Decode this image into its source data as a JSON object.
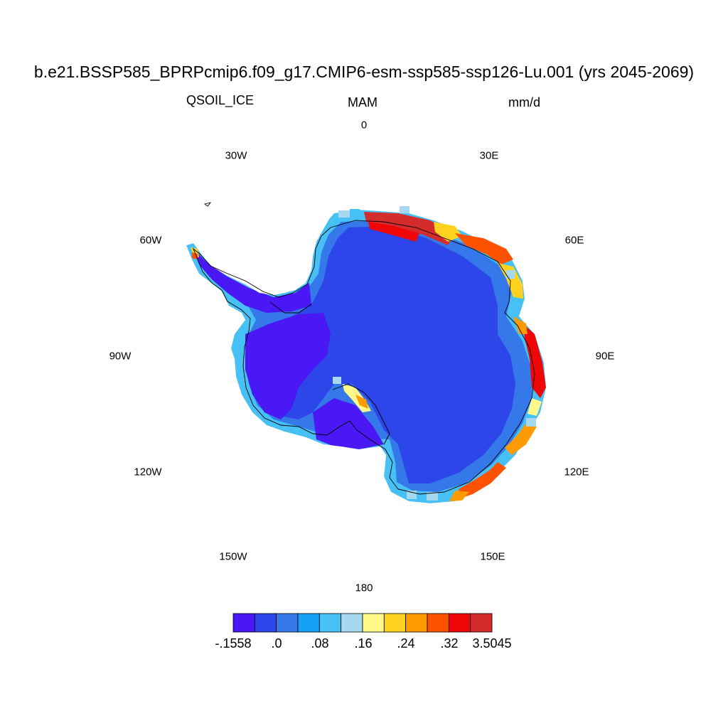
{
  "title": "b.e21.BSSP585_BPRPcmip6.f09_g17.CMIP6-esm-ssp585-ssp126-Lu.001 (yrs 2045-2069)",
  "variable": "QSOIL_ICE",
  "season": "MAM",
  "units": "mm/d",
  "longitude_labels": {
    "lon_0": "0",
    "lon_30e": "30E",
    "lon_60e": "60E",
    "lon_90e": "90E",
    "lon_120e": "120E",
    "lon_150e": "150E",
    "lon_180": "180",
    "lon_150w": "150W",
    "lon_120w": "120W",
    "lon_90w": "90W",
    "lon_60w": "60W",
    "lon_30w": "30W"
  },
  "colorbar": {
    "colors": [
      "#4a18f5",
      "#2c46ea",
      "#3478e9",
      "#17a0f5",
      "#46c0f5",
      "#a6d9ef",
      "#fff98a",
      "#ffd21f",
      "#ff9a00",
      "#ff5200",
      "#ef0606",
      "#d42c2c"
    ],
    "labels": [
      "-.1558",
      ".0",
      ".08",
      ".16",
      ".24",
      ".32",
      "3.5045"
    ]
  },
  "map_colors": {
    "interior": "#2c46ea",
    "low": "#4a18f5",
    "coast_light": "#3478e9",
    "coast_blue": "#17a0f5",
    "coast_cyan": "#46c0f5",
    "pale": "#a6d9ef",
    "yellow": "#fff98a",
    "gold": "#ffd21f",
    "orange": "#ff9a00",
    "red_orange": "#ff5200",
    "red": "#ef0606",
    "dark_red": "#d42c2c",
    "coastline": "#000000"
  }
}
